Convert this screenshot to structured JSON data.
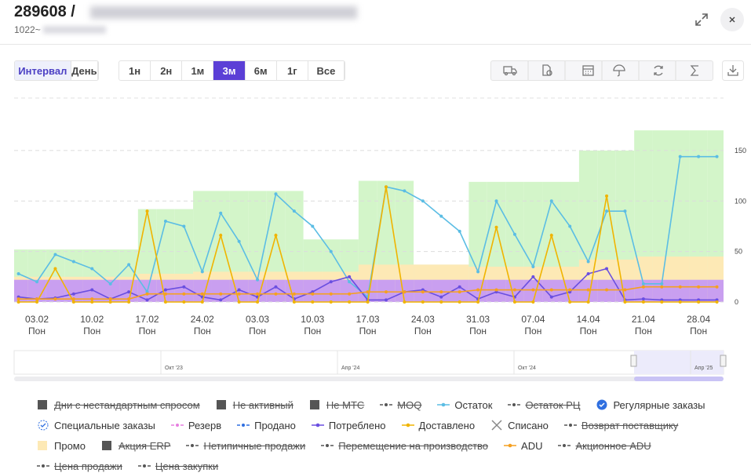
{
  "header": {
    "title": "289608 /",
    "subtitle": "1022~"
  },
  "toolbar": {
    "modes": [
      "Интервал",
      "День"
    ],
    "active_mode": 0,
    "ranges": [
      "1н",
      "2н",
      "1м",
      "3м",
      "6м",
      "1г",
      "Все"
    ],
    "active_range": 3
  },
  "chart_data": {
    "type": "line",
    "categories": [
      null,
      "03.02",
      null,
      null,
      "10.02",
      null,
      null,
      "17.02",
      null,
      null,
      "24.02",
      null,
      null,
      "03.03",
      null,
      null,
      "10.03",
      null,
      null,
      "17.03",
      null,
      null,
      "24.03",
      null,
      null,
      "31.03",
      null,
      null,
      "07.04",
      null,
      null,
      "14.04",
      null,
      null,
      "21.04",
      null,
      null,
      "28.04",
      null
    ],
    "weekday_labels": [
      "Пон",
      "Пон",
      "Пон",
      "Пон",
      "Пон",
      "Пон",
      "Пон",
      "Пон",
      "Пон",
      "Пон",
      "Пон",
      "Пон",
      "Пон"
    ],
    "ylim": [
      0,
      202
    ],
    "yticks": [
      0,
      50,
      100,
      150
    ],
    "grid": true,
    "bands": [
      {
        "color": "#d3f5c9",
        "values": [
          52,
          52,
          52,
          52,
          52,
          52,
          52,
          92,
          92,
          92,
          110,
          110,
          110,
          110,
          110,
          110,
          62,
          62,
          62,
          120,
          120,
          120,
          37,
          37,
          37,
          119,
          119,
          119,
          119,
          119,
          119,
          150,
          150,
          150,
          170,
          170,
          170,
          170,
          170
        ]
      },
      {
        "color": "#c99ff0",
        "values": [
          22,
          22,
          22,
          22,
          22,
          22,
          22,
          22,
          22,
          22,
          22,
          22,
          22,
          22,
          22,
          22,
          22,
          22,
          22,
          22,
          22,
          22,
          22,
          22,
          22,
          22,
          22,
          22,
          22,
          22,
          22,
          22,
          22,
          22,
          22,
          22,
          22,
          22,
          22
        ]
      }
    ],
    "series": [
      {
        "name": "Дни с нестандартным спросом",
        "icon": "square",
        "color": "#555555",
        "struck": true
      },
      {
        "name": "Не активный",
        "icon": "square",
        "color": "#555555",
        "struck": true
      },
      {
        "name": "Не МТС",
        "icon": "square",
        "color": "#555555",
        "struck": true
      },
      {
        "name": "MOQ",
        "icon": "dashdot",
        "color": "#555555",
        "struck": true
      },
      {
        "name": "Остаток",
        "icon": "linedot",
        "color": "#5bbde4",
        "values": [
          28,
          20,
          47,
          40,
          33,
          18,
          37,
          10,
          80,
          75,
          30,
          88,
          60,
          22,
          107,
          90,
          75,
          50,
          20,
          5,
          114,
          110,
          100,
          85,
          70,
          30,
          100,
          67,
          35,
          100,
          75,
          40,
          90,
          90,
          18,
          18,
          144,
          144,
          144
        ]
      },
      {
        "name": "Остаток РЦ",
        "icon": "dashdot",
        "color": "#555555",
        "struck": true
      },
      {
        "name": "Регулярные заказы",
        "icon": "badge",
        "color": "#2f6fe0"
      },
      {
        "name": "Специальные заказы",
        "icon": "badge-dashed",
        "color": "#2f6fe0"
      },
      {
        "name": "Резерв",
        "icon": "dashdot",
        "color": "#e77fe0"
      },
      {
        "name": "Продано",
        "icon": "dashdot",
        "color": "#2f6fe0"
      },
      {
        "name": "Потреблено",
        "icon": "linedot",
        "color": "#6a4fe0",
        "values": [
          5,
          3,
          4,
          8,
          12,
          3,
          10,
          2,
          12,
          15,
          5,
          2,
          12,
          5,
          15,
          3,
          10,
          20,
          25,
          2,
          2,
          10,
          12,
          5,
          15,
          3,
          10,
          5,
          25,
          5,
          10,
          28,
          33,
          2,
          3,
          2,
          2,
          2,
          2
        ]
      },
      {
        "name": "Доставлено",
        "icon": "linedot",
        "color": "#f0b400",
        "values": [
          0,
          0,
          33,
          0,
          0,
          0,
          0,
          90,
          0,
          0,
          0,
          66,
          0,
          0,
          66,
          0,
          0,
          0,
          0,
          0,
          114,
          0,
          0,
          0,
          0,
          0,
          74,
          0,
          0,
          66,
          0,
          0,
          105,
          0,
          0,
          0,
          0,
          0,
          0
        ]
      },
      {
        "name": "Списано",
        "icon": "cross",
        "color": "#888888"
      },
      {
        "name": "Возврат поставщику",
        "icon": "dashdot",
        "color": "#555555",
        "struck": true
      },
      {
        "name": "Промо",
        "icon": "square",
        "color": "#fde9b5",
        "style": "area",
        "values": [
          25,
          25,
          25,
          25,
          25,
          25,
          25,
          28,
          28,
          28,
          30,
          30,
          30,
          30,
          30,
          30,
          30,
          30,
          30,
          37,
          37,
          37,
          37,
          37,
          37,
          35,
          35,
          35,
          35,
          35,
          35,
          42,
          42,
          42,
          45,
          45,
          45,
          45,
          45
        ]
      },
      {
        "name": "Акция ERP",
        "icon": "square",
        "color": "#555555",
        "struck": true
      },
      {
        "name": "Нетипичные продажи",
        "icon": "dashdot",
        "color": "#555555",
        "struck": true
      },
      {
        "name": "Перемещение на производство",
        "icon": "dashdot",
        "color": "#555555",
        "struck": true
      },
      {
        "name": "ADU",
        "icon": "linedot",
        "color": "#f5a020",
        "values": [
          3,
          3,
          3,
          3,
          3,
          3,
          3,
          8,
          8,
          8,
          8,
          8,
          8,
          8,
          8,
          8,
          8,
          8,
          8,
          10,
          10,
          10,
          10,
          10,
          10,
          12,
          12,
          12,
          12,
          12,
          12,
          12,
          12,
          12,
          15,
          15,
          15,
          15,
          15
        ]
      },
      {
        "name": "Акционное ADU",
        "icon": "dashdot",
        "color": "#555555",
        "struck": true
      },
      {
        "name": "Цена продажи",
        "icon": "dashdot",
        "color": "#555555",
        "struck": true
      },
      {
        "name": "Цена закупки",
        "icon": "dashdot",
        "color": "#555555",
        "struck": true
      }
    ]
  },
  "navigator": {
    "labels": [
      "Окт '23",
      "Апр '24",
      "Окт '24",
      "Апр '25"
    ]
  }
}
